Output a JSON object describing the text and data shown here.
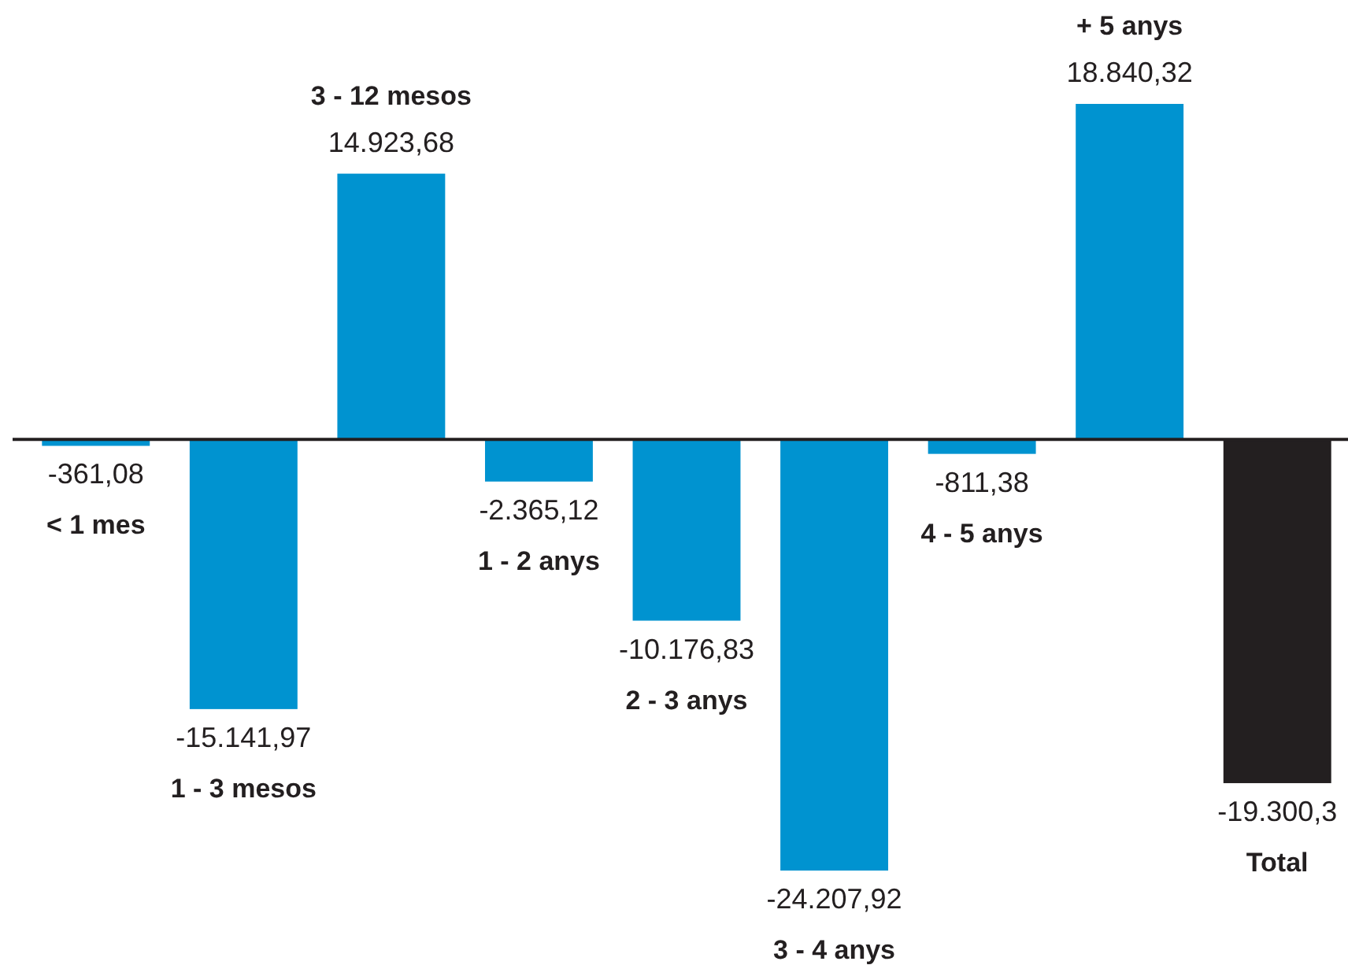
{
  "chart_data": {
    "type": "bar",
    "categories": [
      "< 1 mes",
      "1 - 3 mesos",
      "3 - 12 mesos",
      "1 - 2 anys",
      "2 - 3 anys",
      "3 - 4 anys",
      "4 - 5 anys",
      "+ 5 anys",
      "Total"
    ],
    "values": [
      -361.08,
      -15141.97,
      14923.68,
      -2365.12,
      -10176.83,
      -24207.92,
      -811.38,
      18840.32,
      -19300.3
    ],
    "value_labels": [
      "-361,08",
      "-15.141,97",
      "14.923,68",
      "-2.365,12",
      "-10.176,83",
      "-24.207,92",
      "-811,38",
      "18.840,32",
      "-19.300,3"
    ],
    "colors": [
      "#0093d0",
      "#0093d0",
      "#0093d0",
      "#0093d0",
      "#0093d0",
      "#0093d0",
      "#0093d0",
      "#0093d0",
      "#231f20"
    ]
  }
}
